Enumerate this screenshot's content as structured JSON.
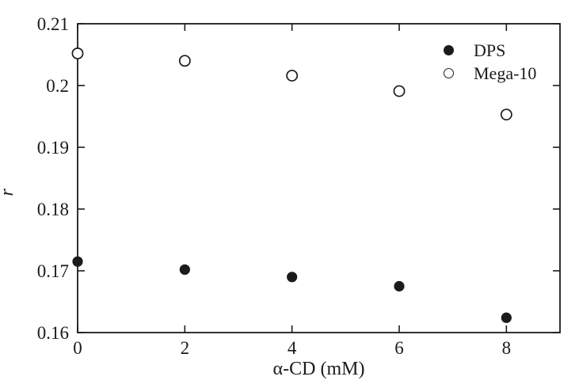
{
  "chart_data": {
    "type": "scatter",
    "title": "",
    "xlabel": "α-CD (mM)",
    "ylabel": "r",
    "xlim": [
      0,
      9
    ],
    "ylim": [
      0.16,
      0.21
    ],
    "x_ticks": [
      0,
      2,
      4,
      6,
      8
    ],
    "x_tick_labels": [
      "0",
      "2",
      "4",
      "6",
      "8"
    ],
    "y_ticks": [
      0.16,
      0.17,
      0.18,
      0.19,
      0.2,
      0.21
    ],
    "y_tick_labels": [
      "0.16",
      "0.17",
      "0.18",
      "0.19",
      "0.2",
      "0.21"
    ],
    "grid": false,
    "legend_position": "top-right",
    "ink_color": "#1b1b1b",
    "background_color": "#ffffff",
    "x": [
      0,
      2,
      4,
      6,
      8
    ],
    "series": [
      {
        "name": "DPS",
        "marker": "filled-circle",
        "color": "#1b1b1b",
        "values": [
          0.1715,
          0.1702,
          0.169,
          0.1675,
          0.1624
        ]
      },
      {
        "name": "Mega-10",
        "marker": "open-circle",
        "color": "#1b1b1b",
        "values": [
          0.2052,
          0.204,
          0.2016,
          0.1991,
          0.1953
        ]
      }
    ]
  }
}
